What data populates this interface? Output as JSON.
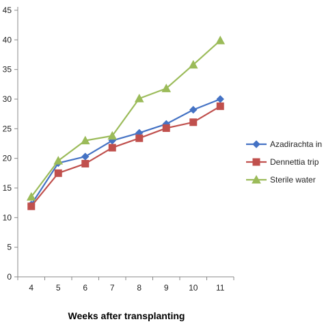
{
  "chart_data": {
    "type": "line",
    "title": "",
    "xlabel": "Weeks after transplanting",
    "ylabel": "",
    "x": [
      4,
      5,
      6,
      7,
      8,
      9,
      10,
      11
    ],
    "xlim": [
      3.5,
      11.5
    ],
    "ylim": [
      0,
      45
    ],
    "yticks": [
      0,
      5,
      10,
      15,
      20,
      25,
      30,
      35,
      40,
      45
    ],
    "grid": false,
    "legend_position": "right",
    "series": [
      {
        "name": "Azadirachta in",
        "color": "#4472C4",
        "marker": "diamond",
        "values": [
          12.2,
          19.2,
          20.3,
          23.0,
          24.3,
          25.8,
          28.2,
          30.0
        ]
      },
      {
        "name": "Dennettia trip",
        "color": "#C0504D",
        "marker": "square",
        "values": [
          11.9,
          17.5,
          19.1,
          21.8,
          23.4,
          25.1,
          26.1,
          28.8
        ]
      },
      {
        "name": "Sterile water",
        "color": "#9BBB59",
        "marker": "triangle",
        "values": [
          13.5,
          19.6,
          23.0,
          23.8,
          30.1,
          31.8,
          35.8,
          39.9
        ]
      }
    ]
  }
}
